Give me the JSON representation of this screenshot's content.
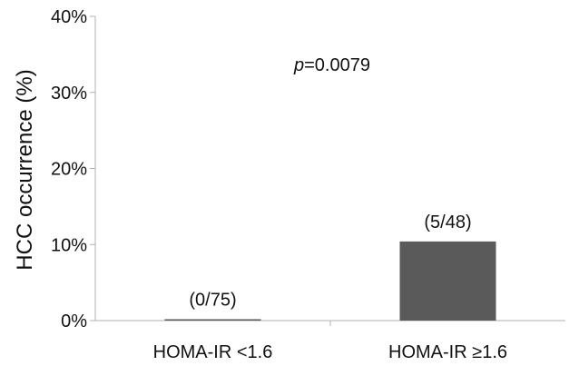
{
  "chart_data": {
    "type": "bar",
    "categories": [
      "HOMA-IR <1.6",
      "HOMA-IR ≥1.6"
    ],
    "values": [
      0,
      10.4
    ],
    "data_labels": [
      "(0/75)",
      "(5/48)"
    ],
    "ylabel": "HCC occurrence (%)",
    "ylim": [
      0,
      40
    ],
    "yticks": [
      0,
      10,
      20,
      30,
      40
    ],
    "ytick_suffix": "%",
    "annotation": {
      "prefix": "p",
      "text": "=0.0079"
    },
    "grid": false,
    "bar_color": "#5a5a5a",
    "axis_color": "#b0b0b0"
  }
}
